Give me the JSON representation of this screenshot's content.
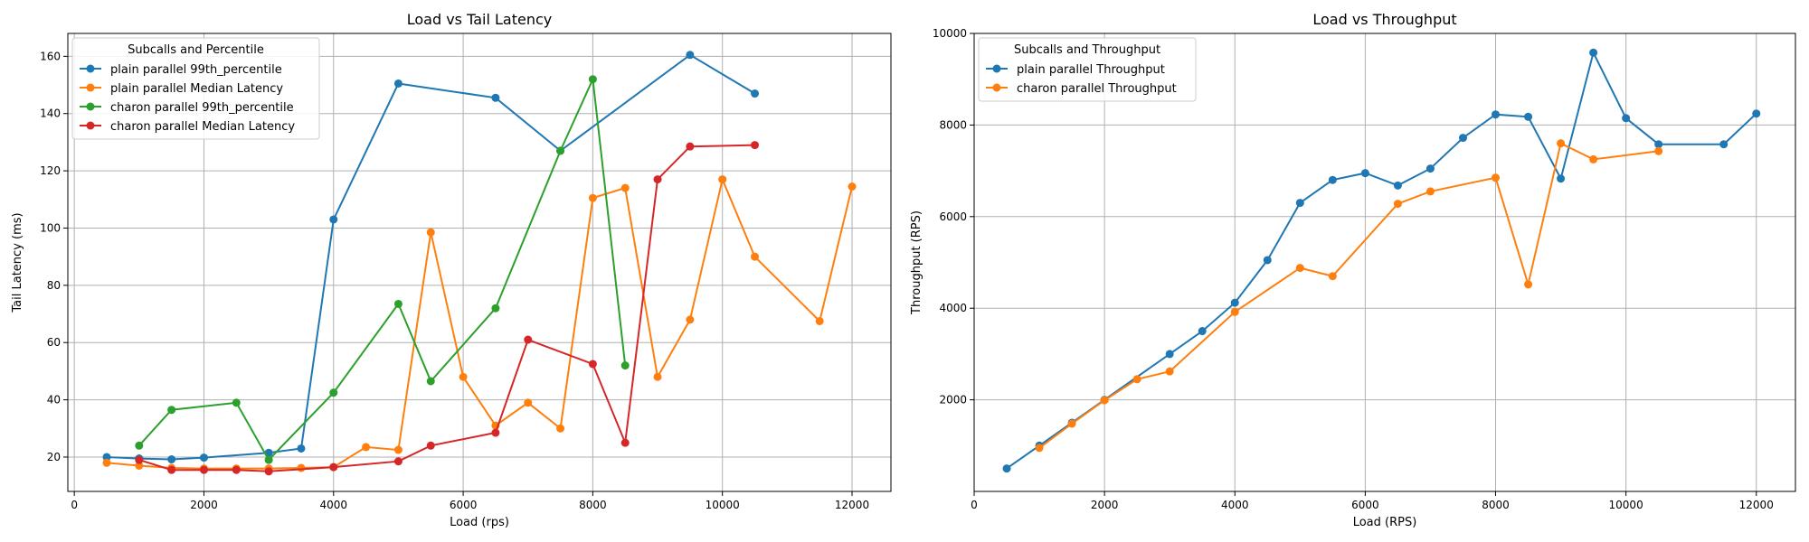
{
  "chart_data": [
    {
      "type": "line",
      "title": "Load vs Tail Latency",
      "xlabel": "Load (rps)",
      "ylabel": "Tail Latency (ms)",
      "xlim": [
        -100,
        12600
      ],
      "ylim": [
        8,
        168
      ],
      "xticks": [
        0,
        2000,
        4000,
        6000,
        8000,
        10000,
        12000
      ],
      "yticks": [
        20,
        40,
        60,
        80,
        100,
        120,
        140,
        160
      ],
      "grid": true,
      "legend_title": "Subcalls and Percentile",
      "legend_position": "top-left",
      "series": [
        {
          "name": "plain parallel 99th_percentile",
          "color": "#1f77b4",
          "x": [
            500,
            1000,
            1500,
            2000,
            3000,
            3500,
            4000,
            5000,
            6500,
            7500,
            9500,
            10500
          ],
          "y": [
            20,
            19.5,
            19.2,
            19.8,
            21.5,
            23,
            103,
            150.5,
            145.5,
            127,
            160.5,
            147
          ]
        },
        {
          "name": "plain parallel Median Latency",
          "color": "#ff7f0e",
          "x": [
            500,
            1000,
            1500,
            2000,
            2500,
            3000,
            3500,
            4000,
            4500,
            5000,
            5500,
            6000,
            6500,
            7000,
            7500,
            8000,
            8500,
            9000,
            9500,
            10000,
            10500,
            11500,
            12000
          ],
          "y": [
            18,
            17,
            16.2,
            16,
            16,
            16,
            16.2,
            16.5,
            23.5,
            22.5,
            98.5,
            48,
            31,
            39,
            30,
            110.5,
            114,
            48,
            68,
            117,
            90,
            67.5,
            114.5
          ]
        },
        {
          "name": "charon parallel 99th_percentile",
          "color": "#2ca02c",
          "x": [
            1000,
            1500,
            2500,
            3000,
            4000,
            5000,
            5500,
            6500,
            7500,
            8000,
            8500
          ],
          "y": [
            24,
            36.5,
            39,
            19,
            42.5,
            73.5,
            46.5,
            72,
            127,
            152,
            52
          ]
        },
        {
          "name": "charon parallel Median Latency",
          "color": "#d62728",
          "x": [
            1000,
            1500,
            2000,
            2500,
            3000,
            4000,
            5000,
            5500,
            6500,
            7000,
            8000,
            8500,
            9000,
            9500,
            10500
          ],
          "y": [
            19,
            15.5,
            15.5,
            15.5,
            15,
            16.5,
            18.5,
            24,
            28.5,
            61,
            52.5,
            25,
            117,
            128.5,
            129
          ]
        }
      ]
    },
    {
      "type": "line",
      "title": "Load vs Throughput",
      "xlabel": "Load (RPS)",
      "ylabel": "Throughput (RPS)",
      "xlimit_note": "",
      "xlim": [
        0,
        12600
      ],
      "ylim": [
        0,
        10000
      ],
      "xticks": [
        0,
        2000,
        4000,
        6000,
        8000,
        10000,
        12000
      ],
      "yticks": [
        2000,
        4000,
        6000,
        8000,
        10000
      ],
      "grid": true,
      "legend_title": "Subcalls and Throughput",
      "legend_position": "top-left",
      "series": [
        {
          "name": "plain parallel Throughput",
          "color": "#1f77b4",
          "x": [
            500,
            1000,
            1500,
            2000,
            3000,
            3500,
            4000,
            4500,
            5000,
            5500,
            6000,
            6500,
            7000,
            7500,
            8000,
            8500,
            9000,
            9500,
            10000,
            10500,
            11500,
            12000
          ],
          "y": [
            500,
            1000,
            1500,
            2000,
            3000,
            3500,
            4120,
            5050,
            6300,
            6800,
            6950,
            6680,
            7050,
            7720,
            8230,
            8180,
            6830,
            9580,
            8150,
            7580,
            7580,
            8250
          ]
        },
        {
          "name": "charon parallel Throughput",
          "color": "#ff7f0e",
          "x": [
            1000,
            1500,
            2000,
            2500,
            3000,
            4000,
            5000,
            5500,
            6500,
            7000,
            8000,
            8500,
            9000,
            9500,
            10500
          ],
          "y": [
            950,
            1480,
            1990,
            2450,
            2620,
            3920,
            4880,
            4700,
            6280,
            6550,
            6850,
            4520,
            7600,
            7250,
            7430
          ]
        }
      ]
    }
  ]
}
